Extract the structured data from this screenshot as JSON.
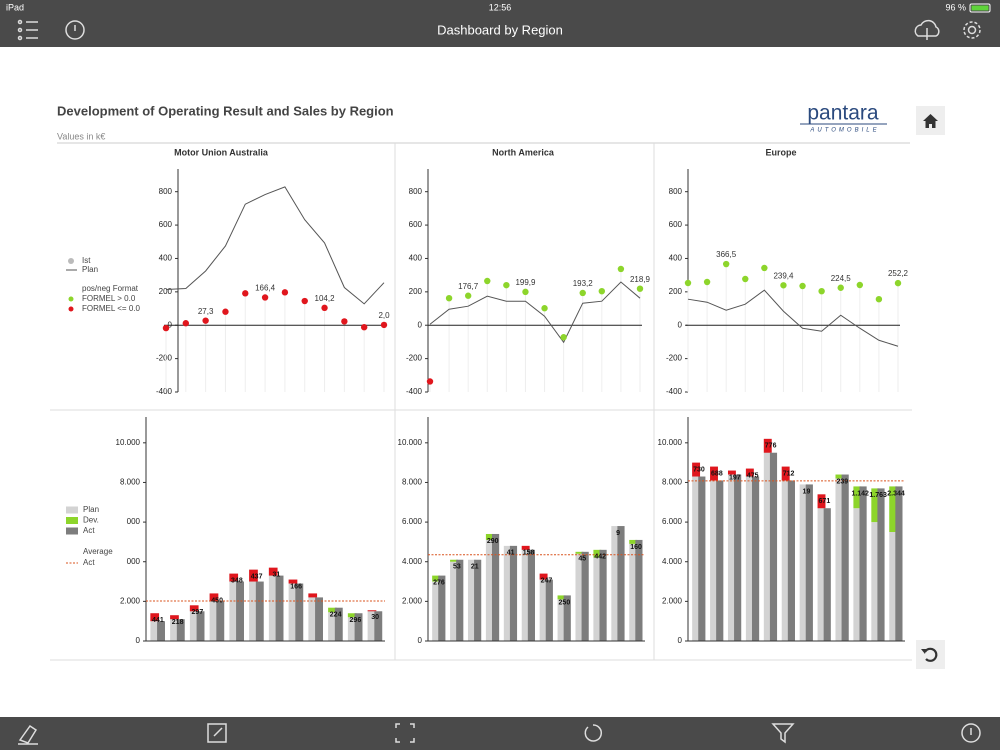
{
  "status_bar": {
    "device": "iPad",
    "time": "12:56",
    "battery": "96 %"
  },
  "header": {
    "title": "Dashboard by Region"
  },
  "report": {
    "title": "Development of Operating Result and Sales by Region",
    "subtitle": "Values in k€",
    "logo": "pantara",
    "logo_sub": "AUTOMOBILE"
  },
  "chart_data": [
    {
      "type": "line",
      "title": "Motor Union Australia",
      "ylim": [
        -400,
        900
      ],
      "yticks": [
        -400,
        -200,
        0,
        200,
        400,
        600,
        800
      ],
      "legend": true,
      "series": [
        {
          "name": "Ist",
          "color": "#bbbbbb",
          "values": [
            -17,
            12,
            27.3,
            81,
            191,
            166.4,
            197,
            145,
            104.2,
            23,
            -12,
            2.0
          ],
          "point_colors": [
            "#e0161d",
            "#e0161d",
            "#e0161d",
            "#e0161d",
            "#e0161d",
            "#e0161d",
            "#e0161d",
            "#e0161d",
            "#e0161d",
            "#e0161d",
            "#e0161d",
            "#e0161d"
          ],
          "value_labels": [
            null,
            null,
            "27,3",
            null,
            null,
            "166,4",
            null,
            null,
            "104,2",
            null,
            null,
            "2,0"
          ]
        },
        {
          "name": "Plan",
          "color": "#555555",
          "values": [
            214,
            220,
            325,
            475,
            725,
            783,
            829,
            632,
            493,
            226,
            128,
            255
          ]
        }
      ],
      "format_legend": {
        "title": "pos/neg Format",
        "entries": [
          {
            "label": "FORMEL > 0.0",
            "color": "#8dd52b"
          },
          {
            "label": "FORMEL <= 0.0",
            "color": "#e0161d"
          }
        ]
      }
    },
    {
      "type": "line",
      "title": "North America",
      "ylim": [
        -400,
        900
      ],
      "yticks": [
        -400,
        -200,
        0,
        200,
        400,
        600,
        800
      ],
      "legend": false,
      "series": [
        {
          "name": "Ist",
          "color": "#bbbbbb",
          "values": [
            -337,
            162,
            176.7,
            265,
            240,
            199.9,
            102,
            -72,
            193.2,
            204,
            337,
            218.9
          ],
          "point_colors": [
            "#e0161d",
            "#8dd52b",
            "#8dd52b",
            "#8dd52b",
            "#8dd52b",
            "#8dd52b",
            "#8dd52b",
            "#8dd52b",
            "#8dd52b",
            "#8dd52b",
            "#8dd52b",
            "#8dd52b"
          ],
          "value_labels": [
            null,
            null,
            "176,7",
            null,
            null,
            "199,9",
            null,
            null,
            "193,2",
            null,
            null,
            "218,9"
          ]
        },
        {
          "name": "Plan",
          "color": "#555555",
          "values": [
            6,
            96,
            114,
            174,
            144,
            144,
            54,
            -102,
            132,
            144,
            259,
            162
          ]
        }
      ]
    },
    {
      "type": "line",
      "title": "Europe",
      "ylim": [
        -400,
        900
      ],
      "yticks": [
        -400,
        -200,
        0,
        200,
        400,
        600,
        800
      ],
      "legend": false,
      "series": [
        {
          "name": "Ist",
          "color": "#bbbbbb",
          "values": [
            253,
            259,
            366.5,
            277,
            343,
            239.4,
            235,
            204,
            224.5,
            241,
            156,
            252.2
          ],
          "point_colors": [
            "#8dd52b",
            "#8dd52b",
            "#8dd52b",
            "#8dd52b",
            "#8dd52b",
            "#8dd52b",
            "#8dd52b",
            "#8dd52b",
            "#8dd52b",
            "#8dd52b",
            "#8dd52b",
            "#8dd52b"
          ],
          "value_labels": [
            null,
            null,
            "366,5",
            null,
            null,
            "239,4",
            null,
            null,
            "224,5",
            null,
            null,
            "252,2"
          ]
        },
        {
          "name": "Plan",
          "color": "#555555",
          "values": [
            156,
            138,
            90,
            126,
            210,
            84,
            -18,
            -36,
            60,
            -18,
            -90,
            -126
          ]
        }
      ]
    },
    {
      "type": "bar",
      "ylim": [
        0,
        11000
      ],
      "yticks": [
        0,
        {
          "value": 2000,
          "label": "2.000"
        },
        {
          "value": 4000,
          "label": "000"
        },
        {
          "value": 6000,
          "label": "000"
        },
        {
          "value": 8000,
          "label": "8.000"
        },
        {
          "value": 10000,
          "label": "10.000"
        }
      ],
      "legend": true,
      "negative_color": "#e0161d",
      "series": [
        {
          "name": "Plan",
          "color": "#d3d3d3",
          "values": [
            1400,
            1300,
            1800,
            2400,
            3400,
            3600,
            3700,
            3100,
            2400,
            1450,
            1200,
            1550
          ]
        },
        {
          "name": "Dev.",
          "color": "#8dd52b",
          "values": [
            441,
            218,
            297,
            450,
            348,
            437,
            31,
            166,
            null,
            224,
            296,
            30
          ]
        },
        {
          "name": "Act",
          "color": "#7d7d7d",
          "values": [
            1000,
            1100,
            1500,
            2000,
            3000,
            3000,
            3300,
            2900,
            2200,
            1680,
            1400,
            1500
          ]
        }
      ],
      "average": {
        "label_lines": [
          "Average",
          "Act"
        ],
        "value": 2020,
        "color": "#d9531e"
      }
    },
    {
      "type": "bar",
      "ylim": [
        0,
        11000
      ],
      "yticks": [
        0,
        {
          "value": 2000,
          "label": "2.000"
        },
        {
          "value": 4000,
          "label": "4.000"
        },
        {
          "value": 6000,
          "label": "6.000"
        },
        {
          "value": 8000,
          "label": "8.000"
        },
        {
          "value": 10000,
          "label": "10.000"
        }
      ],
      "legend": false,
      "negative_color": "#e0161d",
      "series": [
        {
          "name": "Plan",
          "color": "#d3d3d3",
          "values": [
            3000,
            4000,
            4100,
            5100,
            4800,
            4800,
            3400,
            2100,
            4400,
            4200,
            5800,
            4900
          ]
        },
        {
          "name": "Dev.",
          "color": "#8dd52b",
          "values": [
            276,
            53,
            21,
            290,
            41,
            158,
            247,
            250,
            45,
            442,
            9,
            160
          ]
        },
        {
          "name": "Act",
          "color": "#7d7d7d",
          "values": [
            3300,
            4100,
            4100,
            5400,
            4800,
            4600,
            3100,
            2300,
            4500,
            4600,
            5800,
            5100
          ]
        }
      ],
      "average": {
        "value": 4350,
        "color": "#d9531e"
      }
    },
    {
      "type": "bar",
      "ylim": [
        0,
        11000
      ],
      "yticks": [
        0,
        {
          "value": 2000,
          "label": "2.000"
        },
        {
          "value": 4000,
          "label": "4.000"
        },
        {
          "value": 6000,
          "label": "6.000"
        },
        {
          "value": 8000,
          "label": "8.000"
        },
        {
          "value": 10000,
          "label": "10.000"
        }
      ],
      "legend": false,
      "negative_color": "#e0161d",
      "series": [
        {
          "name": "Plan",
          "color": "#d3d3d3",
          "values": [
            9000,
            8800,
            8600,
            8700,
            10200,
            8800,
            7900,
            7400,
            8200,
            6700,
            6000,
            5500
          ]
        },
        {
          "name": "Dev.",
          "color": "#8dd52b",
          "values": [
            730,
            688,
            197,
            475,
            776,
            712,
            19,
            671,
            239,
            1142,
            1763,
            2344
          ],
          "value_labels": [
            "730",
            "688",
            "197",
            "475",
            "776",
            "712",
            "19",
            "671",
            "239",
            "1.142",
            "1.763",
            "2.344"
          ]
        },
        {
          "name": "Act",
          "color": "#7d7d7d",
          "values": [
            8300,
            8100,
            8400,
            8300,
            9500,
            8100,
            7900,
            6700,
            8400,
            7800,
            7700,
            7800
          ]
        }
      ],
      "average": {
        "value": 8080,
        "color": "#d9531e"
      }
    }
  ]
}
